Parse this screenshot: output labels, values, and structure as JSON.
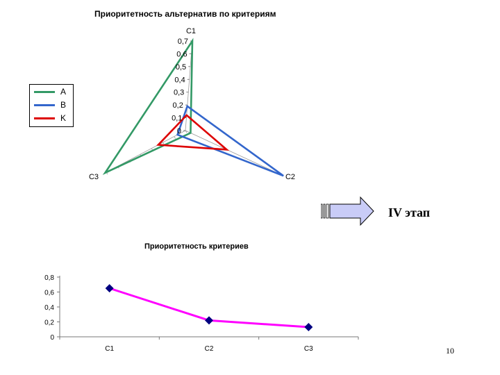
{
  "chart_data": [
    {
      "type": "radar",
      "title": "Приоритетность альтернатив по критериям",
      "axes": [
        "C1",
        "C2",
        "C3"
      ],
      "r_ticks": [
        "0",
        "0,1",
        "0,2",
        "0,3",
        "0,4",
        "0,5",
        "0,6",
        "0,7"
      ],
      "r_range": [
        0,
        0.7
      ],
      "series": [
        {
          "name": "A",
          "color": "#339966",
          "values": [
            0.7,
            0.04,
            0.71
          ]
        },
        {
          "name": "B",
          "color": "#3366CC",
          "values": [
            0.19,
            0.76,
            0.07
          ]
        },
        {
          "name": "K",
          "color": "#DD0000",
          "values": [
            0.12,
            0.32,
            0.24
          ]
        }
      ],
      "legend": "left"
    },
    {
      "type": "line",
      "title": "Приоритетность критериев",
      "categories": [
        "C1",
        "C2",
        "C3"
      ],
      "values": [
        0.65,
        0.22,
        0.13
      ],
      "y_ticks": [
        "0",
        "0,2",
        "0,4",
        "0,6",
        "0,8"
      ],
      "ylim": [
        0,
        0.8
      ],
      "line_color": "#FF00FF",
      "marker_color": "#000080"
    }
  ],
  "stage": {
    "label": "IV этап"
  },
  "page": {
    "number": "10"
  }
}
